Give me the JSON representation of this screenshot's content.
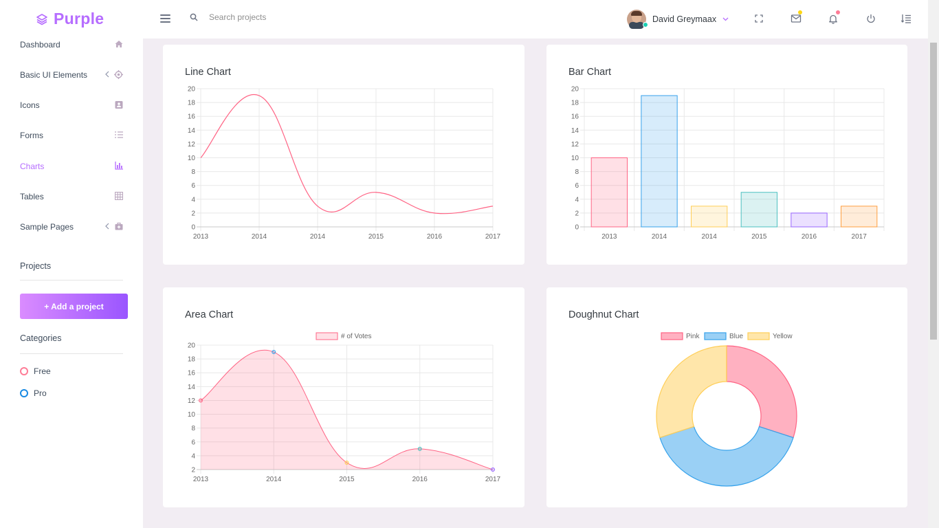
{
  "brand": {
    "name": "Purple"
  },
  "header": {
    "search_placeholder": "Search projects",
    "user_name": "David Greymaax",
    "icons": [
      "menu-icon",
      "search-icon",
      "chevron-down-icon",
      "fullscreen-icon",
      "mail-icon",
      "bell-icon",
      "power-icon",
      "settings-list-icon"
    ]
  },
  "sidebar": {
    "items": [
      {
        "label": "Dashboard",
        "icon": "home-icon"
      },
      {
        "label": "Basic UI Elements",
        "icon": "crosshairs-icon",
        "has_arrow": true
      },
      {
        "label": "Icons",
        "icon": "contacts-icon"
      },
      {
        "label": "Forms",
        "icon": "format-list-icon"
      },
      {
        "label": "Charts",
        "icon": "chart-bar-icon",
        "active": true
      },
      {
        "label": "Tables",
        "icon": "table-icon"
      },
      {
        "label": "Sample Pages",
        "icon": "medical-bag-icon",
        "has_arrow": true
      }
    ],
    "projects_title": "Projects",
    "add_project_label": "+ Add a project",
    "categories_title": "Categories",
    "categories": [
      {
        "label": "Free",
        "color": "#fe7c96"
      },
      {
        "label": "Pro",
        "color": "#198ae3"
      }
    ]
  },
  "colors": {
    "accent": "#b66dff",
    "pink": "#ff6384",
    "blue": "#36a2eb",
    "yellow": "#ffce56",
    "teal": "#4bc0c0",
    "purple": "#9966ff",
    "orange": "#ff9f40"
  },
  "cards": {
    "line_title": "Line Chart",
    "bar_title": "Bar Chart",
    "area_title": "Area Chart",
    "doughnut_title": "Doughnut Chart"
  },
  "chart_data": [
    {
      "type": "line",
      "title": "Line Chart",
      "categories": [
        "2013",
        "2014",
        "2014",
        "2015",
        "2016",
        "2017"
      ],
      "series": [
        {
          "values": [
            10,
            19,
            3,
            5,
            2,
            3
          ]
        }
      ],
      "ylim": [
        0,
        20
      ],
      "yticks": [
        0,
        2,
        4,
        6,
        8,
        10,
        12,
        14,
        16,
        18,
        20
      ],
      "grid": true
    },
    {
      "type": "bar",
      "title": "Bar Chart",
      "categories": [
        "2013",
        "2014",
        "2014",
        "2015",
        "2016",
        "2017"
      ],
      "values": [
        10,
        19,
        3,
        5,
        2,
        3
      ],
      "ylim": [
        0,
        20
      ],
      "yticks": [
        0,
        2,
        4,
        6,
        8,
        10,
        12,
        14,
        16,
        18,
        20
      ],
      "grid": true
    },
    {
      "type": "area",
      "title": "Area Chart",
      "categories": [
        "2013",
        "2014",
        "2015",
        "2016",
        "2017"
      ],
      "series": [
        {
          "name": "# of Votes",
          "values": [
            12,
            19,
            3,
            5,
            2
          ]
        }
      ],
      "ylim": [
        2,
        20
      ],
      "yticks": [
        2,
        4,
        6,
        8,
        10,
        12,
        14,
        16,
        18,
        20
      ],
      "legend": "top",
      "grid": true
    },
    {
      "type": "pie",
      "title": "Doughnut Chart",
      "labels": [
        "Pink",
        "Blue",
        "Yellow"
      ],
      "values": [
        30,
        40,
        30
      ],
      "legend": "top"
    }
  ]
}
